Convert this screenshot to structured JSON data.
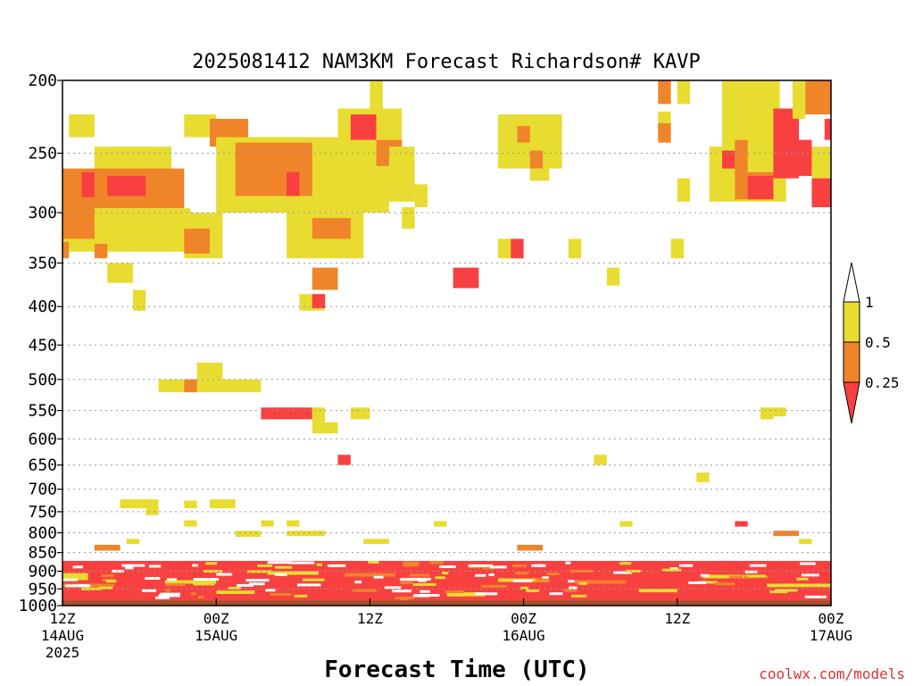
{
  "chart_data": {
    "type": "heatmap",
    "title": "2025081412 NAM3KM Forecast Richardson# KAVP",
    "xlabel": "Forecast Time (UTC)",
    "ylabel": "",
    "credit": "coolwx.com/models",
    "x_range_hours": [
      0,
      60
    ],
    "y_log_scale": true,
    "y_inverted": true,
    "ylim": [
      1000,
      200
    ],
    "y_ticks": [
      "200",
      "250",
      "300",
      "350",
      "400",
      "450",
      "500",
      "550",
      "600",
      "650",
      "700",
      "750",
      "800",
      "850",
      "900",
      "950",
      "1000"
    ],
    "x_ticks": [
      {
        "hour": 0,
        "line1": "12Z",
        "line2": "14AUG",
        "line3": "2025"
      },
      {
        "hour": 12,
        "line1": "00Z",
        "line2": "15AUG",
        "line3": ""
      },
      {
        "hour": 24,
        "line1": "12Z",
        "line2": "",
        "line3": ""
      },
      {
        "hour": 36,
        "line1": "00Z",
        "line2": "16AUG",
        "line3": ""
      },
      {
        "hour": 48,
        "line1": "12Z",
        "line2": "",
        "line3": ""
      },
      {
        "hour": 60,
        "line1": "00Z",
        "line2": "17AUG",
        "line3": ""
      }
    ],
    "grid": "dotted horizontal lines at pressure levels",
    "legend": {
      "placement": "right",
      "labels": [
        "1",
        "0.5",
        "0.25"
      ],
      "colors": {
        "high": "#ffffff",
        "mid_high": "#e8dc30",
        "mid_low": "#f08428",
        "low": "#f84040"
      }
    },
    "colors": {
      "yellow": "#e8dc30",
      "orange": "#f08428",
      "red": "#f84040",
      "ground": "#a0522d"
    },
    "ground_pressure_top": 985,
    "patches": [
      {
        "t0": 0.5,
        "t1": 2.5,
        "p0": 222,
        "p1": 238,
        "v": "y"
      },
      {
        "t0": 2.5,
        "t1": 8.5,
        "p0": 245,
        "p1": 265,
        "v": "y"
      },
      {
        "t0": 0,
        "t1": 9.5,
        "p0": 262,
        "p1": 296,
        "v": "o"
      },
      {
        "t0": 1.5,
        "t1": 2.5,
        "p0": 265,
        "p1": 286,
        "v": "r"
      },
      {
        "t0": 3.5,
        "t1": 6.5,
        "p0": 268,
        "p1": 285,
        "v": "r"
      },
      {
        "t0": 0,
        "t1": 10,
        "p0": 296,
        "p1": 338,
        "v": "y"
      },
      {
        "t0": 0,
        "t1": 2.5,
        "p0": 290,
        "p1": 325,
        "v": "o"
      },
      {
        "t0": 0,
        "t1": 0.5,
        "p0": 328,
        "p1": 345,
        "v": "o"
      },
      {
        "t0": 2.5,
        "t1": 3.5,
        "p0": 330,
        "p1": 345,
        "v": "o"
      },
      {
        "t0": 3.5,
        "t1": 5.5,
        "p0": 350,
        "p1": 372,
        "v": "y"
      },
      {
        "t0": 5.5,
        "t1": 6.5,
        "p0": 380,
        "p1": 405,
        "v": "y"
      },
      {
        "t0": 9.5,
        "t1": 12,
        "p0": 222,
        "p1": 238,
        "v": "y"
      },
      {
        "t0": 11.5,
        "t1": 14.5,
        "p0": 225,
        "p1": 245,
        "v": "o"
      },
      {
        "t0": 12,
        "t1": 25.5,
        "p0": 238,
        "p1": 300,
        "v": "y"
      },
      {
        "t0": 13.5,
        "t1": 19.5,
        "p0": 242,
        "p1": 285,
        "v": "o"
      },
      {
        "t0": 17.5,
        "t1": 18.5,
        "p0": 265,
        "p1": 285,
        "v": "r"
      },
      {
        "t0": 9.5,
        "t1": 12.5,
        "p0": 300,
        "p1": 345,
        "v": "y"
      },
      {
        "t0": 9.5,
        "t1": 11.5,
        "p0": 315,
        "p1": 340,
        "v": "o"
      },
      {
        "t0": 17.5,
        "t1": 23.5,
        "p0": 300,
        "p1": 345,
        "v": "y"
      },
      {
        "t0": 19.5,
        "t1": 22.5,
        "p0": 305,
        "p1": 325,
        "v": "o"
      },
      {
        "t0": 19.5,
        "t1": 21.5,
        "p0": 355,
        "p1": 380,
        "v": "o"
      },
      {
        "t0": 18.5,
        "t1": 20.5,
        "p0": 385,
        "p1": 405,
        "v": "y"
      },
      {
        "t0": 19.5,
        "t1": 20.5,
        "p0": 385,
        "p1": 402,
        "v": "r"
      },
      {
        "t0": 21.5,
        "t1": 26.5,
        "p0": 218,
        "p1": 245,
        "v": "y"
      },
      {
        "t0": 22.5,
        "t1": 24.5,
        "p0": 222,
        "p1": 240,
        "v": "r"
      },
      {
        "t0": 24,
        "t1": 25,
        "p0": 200,
        "p1": 220,
        "v": "y"
      },
      {
        "t0": 24.5,
        "t1": 26.5,
        "p0": 240,
        "p1": 260,
        "v": "o"
      },
      {
        "t0": 25.5,
        "t1": 27.5,
        "p0": 245,
        "p1": 290,
        "v": "y"
      },
      {
        "t0": 27.5,
        "t1": 28.5,
        "p0": 275,
        "p1": 295,
        "v": "y"
      },
      {
        "t0": 26.5,
        "t1": 27.5,
        "p0": 295,
        "p1": 315,
        "v": "y"
      },
      {
        "t0": 30.5,
        "t1": 32.5,
        "p0": 355,
        "p1": 378,
        "v": "r"
      },
      {
        "t0": 34,
        "t1": 39,
        "p0": 222,
        "p1": 262,
        "v": "y"
      },
      {
        "t0": 35.5,
        "t1": 36.5,
        "p0": 230,
        "p1": 242,
        "v": "o"
      },
      {
        "t0": 36.5,
        "t1": 37.5,
        "p0": 248,
        "p1": 262,
        "v": "o"
      },
      {
        "t0": 36.5,
        "t1": 38,
        "p0": 262,
        "p1": 272,
        "v": "y"
      },
      {
        "t0": 34,
        "t1": 35,
        "p0": 325,
        "p1": 345,
        "v": "y"
      },
      {
        "t0": 35,
        "t1": 36,
        "p0": 325,
        "p1": 345,
        "v": "r"
      },
      {
        "t0": 39.5,
        "t1": 40.5,
        "p0": 325,
        "p1": 345,
        "v": "y"
      },
      {
        "t0": 42.5,
        "t1": 43.5,
        "p0": 355,
        "p1": 375,
        "v": "y"
      },
      {
        "t0": 46.5,
        "t1": 47.5,
        "p0": 200,
        "p1": 215,
        "v": "o"
      },
      {
        "t0": 48,
        "t1": 49,
        "p0": 200,
        "p1": 215,
        "v": "y"
      },
      {
        "t0": 46.5,
        "t1": 47.5,
        "p0": 220,
        "p1": 240,
        "v": "y"
      },
      {
        "t0": 46.5,
        "t1": 47.5,
        "p0": 228,
        "p1": 242,
        "v": "o"
      },
      {
        "t0": 47.5,
        "t1": 48.5,
        "p0": 325,
        "p1": 345,
        "v": "y"
      },
      {
        "t0": 48,
        "t1": 49,
        "p0": 270,
        "p1": 290,
        "v": "y"
      },
      {
        "t0": 51.5,
        "t1": 56,
        "p0": 200,
        "p1": 245,
        "v": "y"
      },
      {
        "t0": 50.5,
        "t1": 56.5,
        "p0": 245,
        "p1": 290,
        "v": "y"
      },
      {
        "t0": 51.5,
        "t1": 52.5,
        "p0": 248,
        "p1": 262,
        "v": "r"
      },
      {
        "t0": 52.5,
        "t1": 53.5,
        "p0": 240,
        "p1": 265,
        "v": "o"
      },
      {
        "t0": 52.5,
        "t1": 55.5,
        "p0": 265,
        "p1": 288,
        "v": "o"
      },
      {
        "t0": 53.5,
        "t1": 55.5,
        "p0": 268,
        "p1": 288,
        "v": "r"
      },
      {
        "t0": 55.5,
        "t1": 57.5,
        "p0": 218,
        "p1": 270,
        "v": "r"
      },
      {
        "t0": 56.5,
        "t1": 58.5,
        "p0": 240,
        "p1": 268,
        "v": "r"
      },
      {
        "t0": 57,
        "t1": 58,
        "p0": 200,
        "p1": 225,
        "v": "y"
      },
      {
        "t0": 58,
        "t1": 60,
        "p0": 200,
        "p1": 222,
        "v": "o"
      },
      {
        "t0": 58.5,
        "t1": 60,
        "p0": 245,
        "p1": 270,
        "v": "y"
      },
      {
        "t0": 58.5,
        "t1": 60,
        "p0": 270,
        "p1": 295,
        "v": "r"
      },
      {
        "t0": 59.5,
        "t1": 60,
        "p0": 225,
        "p1": 240,
        "v": "r"
      },
      {
        "t0": 7.5,
        "t1": 10.5,
        "p0": 500,
        "p1": 520,
        "v": "y"
      },
      {
        "t0": 9.5,
        "t1": 15.5,
        "p0": 500,
        "p1": 520,
        "v": "y"
      },
      {
        "t0": 10.5,
        "t1": 12.5,
        "p0": 475,
        "p1": 500,
        "v": "y"
      },
      {
        "t0": 9.5,
        "t1": 10.5,
        "p0": 500,
        "p1": 520,
        "v": "o"
      },
      {
        "t0": 15.5,
        "t1": 19.5,
        "p0": 545,
        "p1": 565,
        "v": "r"
      },
      {
        "t0": 19.5,
        "t1": 20.5,
        "p0": 545,
        "p1": 570,
        "v": "y"
      },
      {
        "t0": 19.5,
        "t1": 21.5,
        "p0": 570,
        "p1": 590,
        "v": "y"
      },
      {
        "t0": 22.5,
        "t1": 24,
        "p0": 545,
        "p1": 565,
        "v": "y"
      },
      {
        "t0": 21.5,
        "t1": 22.5,
        "p0": 630,
        "p1": 650,
        "v": "r"
      },
      {
        "t0": 41.5,
        "t1": 42.5,
        "p0": 630,
        "p1": 650,
        "v": "y"
      },
      {
        "t0": 49.5,
        "t1": 50.5,
        "p0": 665,
        "p1": 685,
        "v": "y"
      },
      {
        "t0": 54.5,
        "t1": 55.5,
        "p0": 545,
        "p1": 565,
        "v": "y"
      },
      {
        "t0": 55.5,
        "t1": 56.5,
        "p0": 545,
        "p1": 560,
        "v": "y"
      },
      {
        "t0": 4.5,
        "t1": 7.5,
        "p0": 722,
        "p1": 742,
        "v": "y"
      },
      {
        "t0": 6.5,
        "t1": 7.5,
        "p0": 742,
        "p1": 758,
        "v": "y"
      },
      {
        "t0": 11.5,
        "t1": 13.5,
        "p0": 722,
        "p1": 742,
        "v": "y"
      },
      {
        "t0": 9.5,
        "t1": 10.5,
        "p0": 725,
        "p1": 742,
        "v": "y"
      },
      {
        "t0": 9.5,
        "t1": 10.5,
        "p0": 770,
        "p1": 785,
        "v": "y"
      },
      {
        "t0": 15.5,
        "t1": 16.5,
        "p0": 770,
        "p1": 785,
        "v": "y"
      },
      {
        "t0": 17.5,
        "t1": 18.5,
        "p0": 770,
        "p1": 785,
        "v": "y"
      },
      {
        "t0": 29,
        "t1": 30,
        "p0": 772,
        "p1": 785,
        "v": "y"
      },
      {
        "t0": 43.5,
        "t1": 44.5,
        "p0": 772,
        "p1": 785,
        "v": "y"
      },
      {
        "t0": 52.5,
        "t1": 53.5,
        "p0": 772,
        "p1": 785,
        "v": "r"
      },
      {
        "t0": 13.5,
        "t1": 15.5,
        "p0": 795,
        "p1": 810,
        "v": "y"
      },
      {
        "t0": 17.5,
        "t1": 20.5,
        "p0": 795,
        "p1": 808,
        "v": "y"
      },
      {
        "t0": 23.5,
        "t1": 25.5,
        "p0": 815,
        "p1": 828,
        "v": "y"
      },
      {
        "t0": 5,
        "t1": 6,
        "p0": 815,
        "p1": 828,
        "v": "y"
      },
      {
        "t0": 55.5,
        "t1": 57.5,
        "p0": 795,
        "p1": 808,
        "v": "o"
      },
      {
        "t0": 57.5,
        "t1": 58.5,
        "p0": 815,
        "p1": 828,
        "v": "y"
      },
      {
        "t0": 35.5,
        "t1": 37.5,
        "p0": 830,
        "p1": 845,
        "v": "o"
      },
      {
        "t0": 2.5,
        "t1": 4.5,
        "p0": 830,
        "p1": 845,
        "v": "o"
      },
      {
        "t0": 0,
        "t1": 60,
        "p0": 872,
        "p1": 985,
        "v": "r"
      },
      {
        "t0": 0,
        "t1": 2,
        "p0": 905,
        "p1": 925,
        "v": "y"
      },
      {
        "t0": 0,
        "t1": 4,
        "p0": 935,
        "p1": 945,
        "v": "o"
      },
      {
        "t0": 8,
        "t1": 12,
        "p0": 925,
        "p1": 935,
        "v": "y"
      },
      {
        "t0": 16,
        "t1": 20,
        "p0": 900,
        "p1": 910,
        "v": "y"
      },
      {
        "t0": 22,
        "t1": 26,
        "p0": 905,
        "p1": 915,
        "v": "o"
      },
      {
        "t0": 34,
        "t1": 38,
        "p0": 920,
        "p1": 930,
        "v": "y"
      },
      {
        "t0": 40,
        "t1": 44,
        "p0": 925,
        "p1": 935,
        "v": "o"
      },
      {
        "t0": 50,
        "t1": 54,
        "p0": 910,
        "p1": 920,
        "v": "y"
      },
      {
        "t0": 55,
        "t1": 60,
        "p0": 935,
        "p1": 945,
        "v": "y"
      },
      {
        "t0": 30,
        "t1": 33,
        "p0": 960,
        "p1": 972,
        "v": "y"
      },
      {
        "t0": 12,
        "t1": 15,
        "p0": 955,
        "p1": 965,
        "v": "y"
      },
      {
        "t0": 45,
        "t1": 48,
        "p0": 950,
        "p1": 960,
        "v": "y"
      }
    ]
  }
}
